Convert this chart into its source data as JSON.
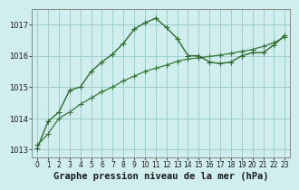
{
  "line1_x": [
    0,
    1,
    2,
    3,
    4,
    5,
    6,
    7,
    8,
    9,
    10,
    11,
    12,
    13,
    14,
    15,
    16,
    17,
    18,
    19,
    20,
    21,
    22,
    23
  ],
  "line1_y": [
    1013.05,
    1013.9,
    1014.2,
    1014.9,
    1015.0,
    1015.5,
    1015.8,
    1016.05,
    1016.4,
    1016.85,
    1017.05,
    1017.2,
    1016.9,
    1016.55,
    1016.0,
    1016.0,
    1015.8,
    1015.75,
    1015.8,
    1016.0,
    1016.1,
    1016.1,
    1016.35,
    1016.65
  ],
  "line2_x": [
    0,
    1,
    2,
    3,
    4,
    5,
    6,
    7,
    8,
    9,
    10,
    11,
    12,
    13,
    14,
    15,
    16,
    17,
    18,
    19,
    20,
    21,
    22,
    23
  ],
  "line2_y": [
    1013.15,
    1013.5,
    1014.0,
    1014.2,
    1014.45,
    1014.65,
    1014.85,
    1015.0,
    1015.2,
    1015.35,
    1015.5,
    1015.6,
    1015.7,
    1015.82,
    1015.9,
    1015.93,
    1015.98,
    1016.02,
    1016.08,
    1016.14,
    1016.2,
    1016.3,
    1016.42,
    1016.6
  ],
  "line_color1": "#2d6a2d",
  "line_color2": "#3a7a3a",
  "bg_color": "#d0eeee",
  "grid_color": "#9ecece",
  "xlabel": "Graphe pression niveau de la mer (hPa)",
  "ylim": [
    1012.75,
    1017.5
  ],
  "xlim": [
    -0.5,
    23.5
  ],
  "yticks": [
    1013,
    1014,
    1015,
    1016,
    1017
  ],
  "xticks": [
    0,
    1,
    2,
    3,
    4,
    5,
    6,
    7,
    8,
    9,
    10,
    11,
    12,
    13,
    14,
    15,
    16,
    17,
    18,
    19,
    20,
    21,
    22,
    23
  ],
  "xlabel_fontsize": 7.5,
  "tick_fontsize": 6.0
}
